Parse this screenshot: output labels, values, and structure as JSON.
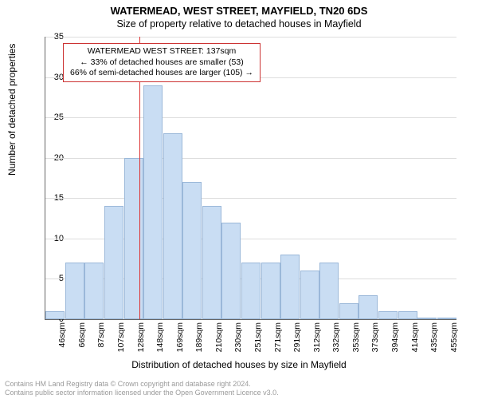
{
  "title": "WATERMEAD, WEST STREET, MAYFIELD, TN20 6DS",
  "subtitle": "Size of property relative to detached houses in Mayfield",
  "ylabel": "Number of detached properties",
  "xlabel": "Distribution of detached houses by size in Mayfield",
  "annotation": {
    "line1": "WATERMEAD WEST STREET: 137sqm",
    "line2": "← 33% of detached houses are smaller (53)",
    "line3": "66% of semi-detached houses are larger (105) →"
  },
  "footer": {
    "line1": "Contains HM Land Registry data © Crown copyright and database right 2024.",
    "line2": "Contains public sector information licensed under the Open Government Licence v3.0."
  },
  "chart": {
    "type": "bar",
    "ylim": [
      0,
      35
    ],
    "ytick_step": 5,
    "yticks": [
      0,
      5,
      10,
      15,
      20,
      25,
      30,
      35
    ],
    "background_color": "#ffffff",
    "grid_color": "#dddddd",
    "bar_fill": "#c9ddf3",
    "bar_stroke": "#9bb8d9",
    "marker_color": "#dd3333",
    "marker_at_category_index": 4.3,
    "categories": [
      "46sqm",
      "66sqm",
      "87sqm",
      "107sqm",
      "128sqm",
      "148sqm",
      "169sqm",
      "189sqm",
      "210sqm",
      "230sqm",
      "251sqm",
      "271sqm",
      "291sqm",
      "312sqm",
      "332sqm",
      "353sqm",
      "373sqm",
      "394sqm",
      "414sqm",
      "435sqm",
      "455sqm"
    ],
    "values": [
      1,
      7,
      7,
      14,
      20,
      29,
      23,
      17,
      14,
      12,
      7,
      7,
      8,
      6,
      7,
      2,
      3,
      1,
      1,
      0.2,
      0.2
    ],
    "title_fontsize": 13,
    "subtitle_fontsize": 12.5,
    "label_fontsize": 12,
    "tick_fontsize": 11
  }
}
